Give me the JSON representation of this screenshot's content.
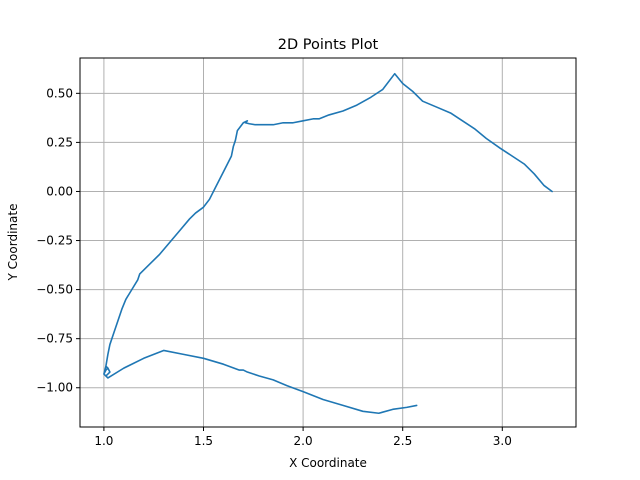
{
  "chart_data": {
    "type": "line",
    "title": "2D Points Plot",
    "xlabel": "X Coordinate",
    "ylabel": "Y Coordinate",
    "xlim": [
      0.88,
      3.37
    ],
    "ylim": [
      -1.2,
      0.68
    ],
    "xticks": [
      1.0,
      1.5,
      2.0,
      2.5,
      3.0
    ],
    "xtick_labels": [
      "1.0",
      "1.5",
      "2.0",
      "2.5",
      "3.0"
    ],
    "yticks": [
      -1.0,
      -0.75,
      -0.5,
      -0.25,
      0.0,
      0.25,
      0.5
    ],
    "ytick_labels": [
      "−1.00",
      "−0.75",
      "−0.50",
      "−0.25",
      "0.00",
      "0.25",
      "0.50"
    ],
    "grid": true,
    "series": [
      {
        "color": "#1f77b4",
        "x": [
          3.25,
          3.21,
          3.16,
          3.11,
          3.05,
          2.99,
          2.92,
          2.86,
          2.8,
          2.74,
          2.67,
          2.6,
          2.55,
          2.5,
          2.46,
          2.4,
          2.34,
          2.27,
          2.2,
          2.13,
          2.08,
          2.05,
          2.0,
          1.95,
          1.9,
          1.85,
          1.8,
          1.76,
          1.73,
          1.71,
          1.72,
          1.7,
          1.67,
          1.66,
          1.65,
          1.64,
          1.62,
          1.6,
          1.56,
          1.53,
          1.5,
          1.46,
          1.43,
          1.38,
          1.33,
          1.28,
          1.22,
          1.18,
          1.17,
          1.14,
          1.11,
          1.09,
          1.07,
          1.05,
          1.03,
          1.02,
          1.01,
          1.02,
          1.01,
          1.0,
          1.01,
          1.02,
          1.03,
          1.02,
          1.01,
          1.0,
          1.02,
          1.1,
          1.2,
          1.3,
          1.4,
          1.5,
          1.6,
          1.68,
          1.7,
          1.72,
          1.78,
          1.85,
          1.92,
          2.0,
          2.1,
          2.2,
          2.3,
          2.38,
          2.45,
          2.52,
          2.57
        ],
        "y": [
          0.0,
          0.03,
          0.09,
          0.14,
          0.18,
          0.22,
          0.27,
          0.32,
          0.36,
          0.4,
          0.43,
          0.46,
          0.51,
          0.55,
          0.6,
          0.52,
          0.48,
          0.44,
          0.41,
          0.39,
          0.37,
          0.37,
          0.36,
          0.35,
          0.35,
          0.34,
          0.34,
          0.34,
          0.345,
          0.35,
          0.36,
          0.35,
          0.31,
          0.26,
          0.23,
          0.18,
          0.14,
          0.1,
          0.02,
          -0.04,
          -0.08,
          -0.11,
          -0.14,
          -0.2,
          -0.26,
          -0.32,
          -0.38,
          -0.42,
          -0.45,
          -0.5,
          -0.55,
          -0.6,
          -0.66,
          -0.72,
          -0.78,
          -0.83,
          -0.89,
          -0.9,
          -0.91,
          -0.93,
          -0.94,
          -0.93,
          -0.92,
          -0.9,
          -0.89,
          -0.93,
          -0.95,
          -0.9,
          -0.85,
          -0.81,
          -0.83,
          -0.85,
          -0.88,
          -0.91,
          -0.91,
          -0.92,
          -0.94,
          -0.96,
          -0.99,
          -1.02,
          -1.06,
          -1.09,
          -1.12,
          -1.13,
          -1.11,
          -1.1,
          -1.09
        ]
      }
    ]
  }
}
